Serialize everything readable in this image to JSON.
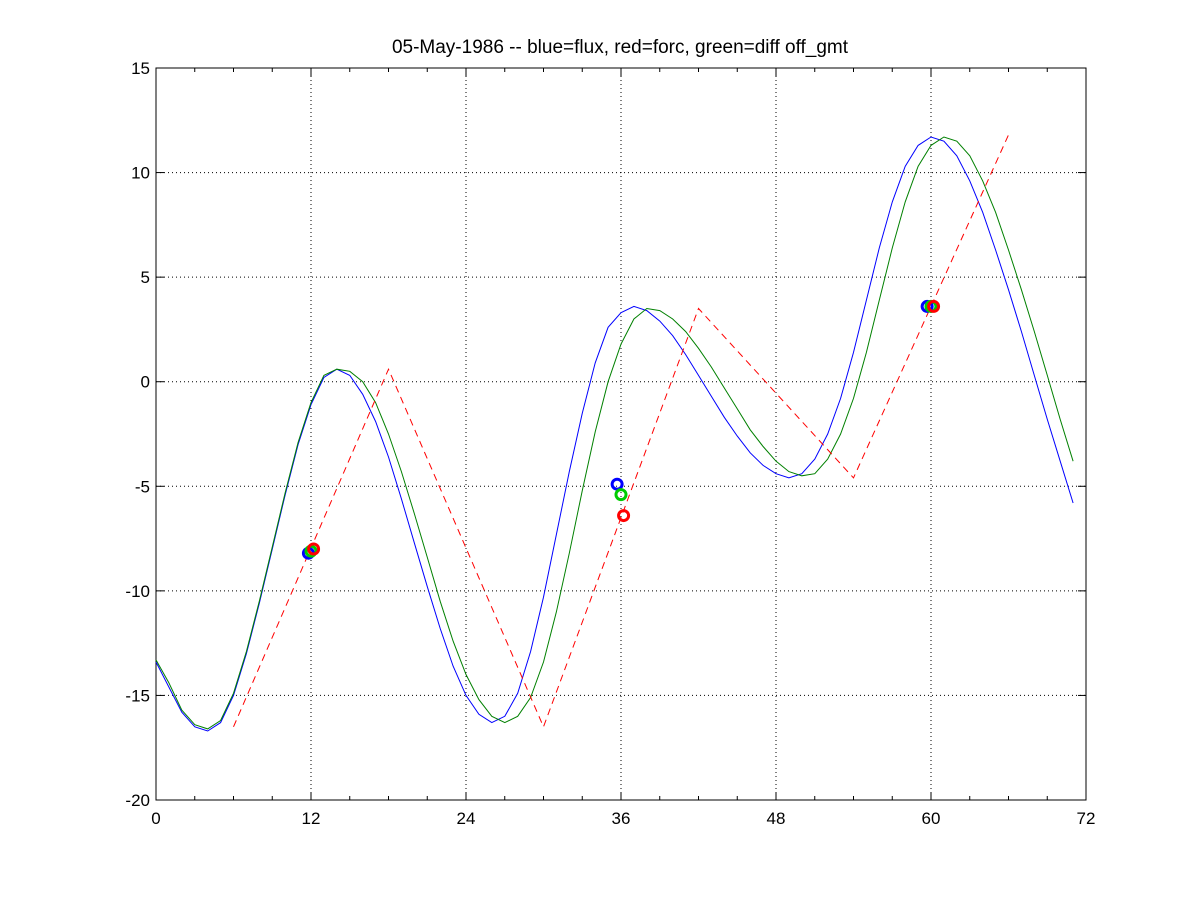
{
  "chart_data": {
    "type": "line",
    "title": "05-May-1986 -- blue=flux, red=forc, green=diff off_gmt",
    "xlabel": "",
    "ylabel": "",
    "xlim": [
      0,
      72
    ],
    "ylim": [
      -20,
      15
    ],
    "xticks": [
      0,
      12,
      24,
      36,
      48,
      60,
      72
    ],
    "yticks": [
      -20,
      -15,
      -10,
      -5,
      0,
      5,
      10,
      15
    ],
    "grid": true,
    "series": [
      {
        "color": "#0000ff",
        "style": "solid",
        "x": [
          0,
          1,
          2,
          3,
          4,
          5,
          6,
          7,
          8,
          9,
          10,
          11,
          12,
          13,
          14,
          15,
          16,
          17,
          18,
          19,
          20,
          21,
          22,
          23,
          24,
          25,
          26,
          27,
          28,
          29,
          30,
          31,
          32,
          33,
          34,
          35,
          36,
          37,
          38,
          39,
          40,
          41,
          42,
          43,
          44,
          45,
          46,
          47,
          48,
          49,
          50,
          51,
          52,
          53,
          54,
          55,
          56,
          57,
          58,
          59,
          60,
          61,
          62,
          63,
          64,
          65,
          66,
          67,
          68,
          69,
          70,
          71
        ],
        "values": [
          -13.4,
          -14.6,
          -15.8,
          -16.5,
          -16.7,
          -16.3,
          -15.0,
          -13.0,
          -10.6,
          -8.0,
          -5.4,
          -3.0,
          -1.1,
          0.2,
          0.6,
          0.3,
          -0.6,
          -1.9,
          -3.6,
          -5.6,
          -7.7,
          -9.8,
          -11.8,
          -13.6,
          -15.0,
          -15.9,
          -16.3,
          -16.0,
          -14.9,
          -12.9,
          -10.3,
          -7.3,
          -4.3,
          -1.5,
          0.9,
          2.6,
          3.3,
          3.6,
          3.4,
          2.9,
          2.2,
          1.3,
          0.3,
          -0.7,
          -1.7,
          -2.6,
          -3.4,
          -4.0,
          -4.4,
          -4.6,
          -4.4,
          -3.7,
          -2.5,
          -0.8,
          1.4,
          3.9,
          6.4,
          8.6,
          10.3,
          11.3,
          11.7,
          11.5,
          10.8,
          9.6,
          8.1,
          6.3,
          4.4,
          2.4,
          0.3,
          -1.8,
          -3.8,
          -5.8
        ]
      },
      {
        "color": "#008000",
        "style": "solid",
        "x": [
          0,
          1,
          2,
          3,
          4,
          5,
          6,
          7,
          8,
          9,
          10,
          11,
          12,
          13,
          14,
          15,
          16,
          17,
          18,
          19,
          20,
          21,
          22,
          23,
          24,
          25,
          26,
          27,
          28,
          29,
          30,
          31,
          32,
          33,
          34,
          35,
          36,
          37,
          38,
          39,
          40,
          41,
          42,
          43,
          44,
          45,
          46,
          47,
          48,
          49,
          50,
          51,
          52,
          53,
          54,
          55,
          56,
          57,
          58,
          59,
          60,
          61,
          62,
          63,
          64,
          65,
          66,
          67,
          68,
          69,
          70,
          71
        ],
        "values": [
          -13.3,
          -14.4,
          -15.7,
          -16.4,
          -16.6,
          -16.2,
          -14.9,
          -12.9,
          -10.5,
          -7.9,
          -5.3,
          -2.9,
          -1.0,
          0.3,
          0.6,
          0.5,
          0.0,
          -1.0,
          -2.5,
          -4.3,
          -6.3,
          -8.4,
          -10.5,
          -12.4,
          -14.0,
          -15.2,
          -16.0,
          -16.3,
          -16.0,
          -15.1,
          -13.4,
          -11.0,
          -8.2,
          -5.2,
          -2.4,
          0.0,
          1.8,
          3.0,
          3.5,
          3.4,
          3.0,
          2.4,
          1.6,
          0.7,
          -0.3,
          -1.3,
          -2.3,
          -3.1,
          -3.8,
          -4.3,
          -4.5,
          -4.4,
          -3.7,
          -2.5,
          -0.8,
          1.4,
          3.9,
          6.4,
          8.6,
          10.3,
          11.3,
          11.7,
          11.5,
          10.8,
          9.6,
          8.1,
          6.3,
          4.4,
          2.4,
          0.3,
          -1.8,
          -3.8
        ]
      },
      {
        "color": "#ff0000",
        "style": "dashed",
        "x": [
          6,
          18,
          30,
          42,
          54,
          66
        ],
        "values": [
          -16.5,
          0.6,
          -16.5,
          3.5,
          -4.6,
          11.8
        ]
      }
    ],
    "markers": [
      {
        "color": "#0000ff",
        "x": 11.8,
        "y": -8.2
      },
      {
        "color": "#00cc00",
        "x": 12.0,
        "y": -8.1
      },
      {
        "color": "#ff0000",
        "x": 12.2,
        "y": -8.0
      },
      {
        "color": "#0000ff",
        "x": 35.7,
        "y": -4.9
      },
      {
        "color": "#00cc00",
        "x": 36.0,
        "y": -5.4
      },
      {
        "color": "#ff0000",
        "x": 36.2,
        "y": -6.4
      },
      {
        "color": "#0000ff",
        "x": 59.7,
        "y": 3.6
      },
      {
        "color": "#00cc00",
        "x": 60.0,
        "y": 3.6
      },
      {
        "color": "#ff0000",
        "x": 60.2,
        "y": 3.6
      }
    ]
  }
}
